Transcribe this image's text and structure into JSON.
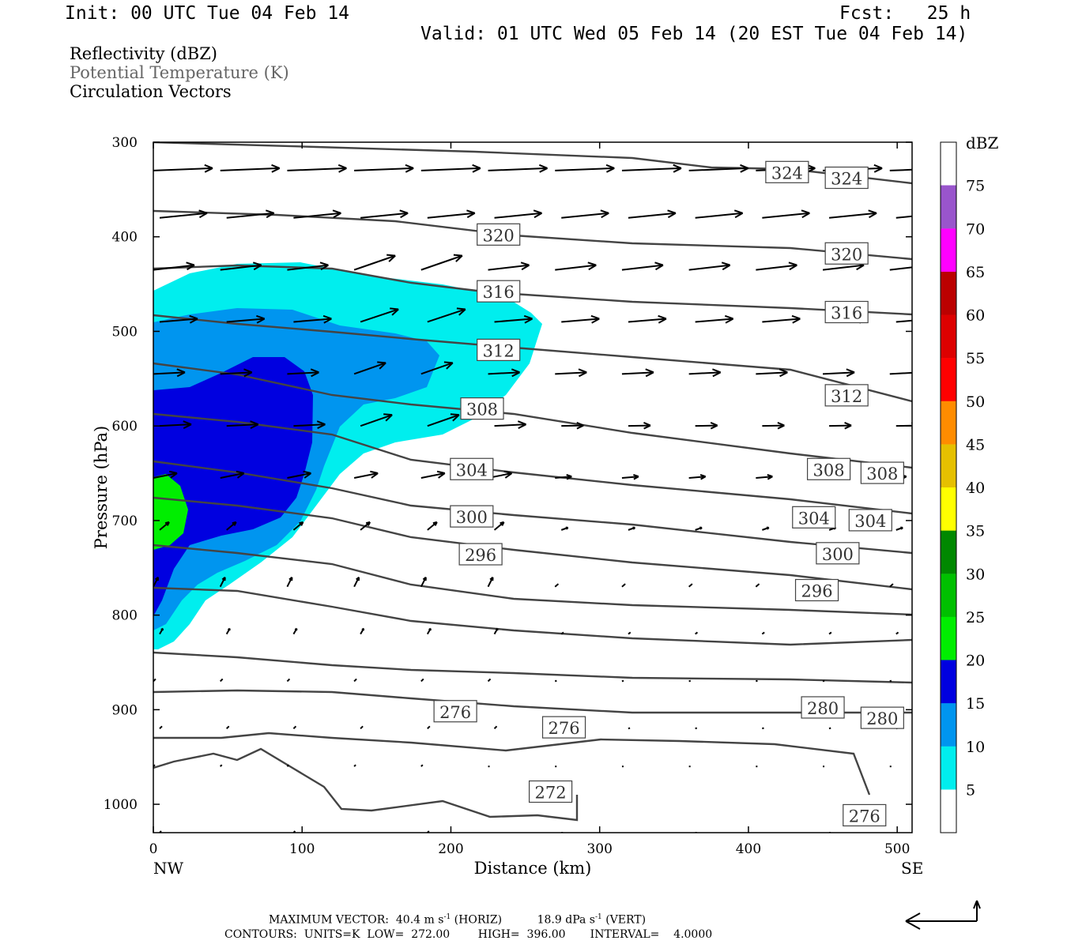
{
  "header": {
    "init": "Init: 00 UTC Tue 04 Feb 14",
    "fcst": "Fcst:   25 h",
    "valid": "Valid: 01 UTC Wed 05 Feb 14 (20 EST Tue 04 Feb 14)"
  },
  "legend_lines": [
    "Reflectivity (dBZ)",
    "Potential Temperature (K)",
    "Circulation Vectors"
  ],
  "footer": {
    "max_vector_label": "MAXIMUM VECTOR:",
    "max_horiz": "40.4 m s",
    "horiz_tag": "(HORIZ)",
    "max_vert": "18.9 dPa s",
    "vert_tag": "(VERT)",
    "exp": "-1",
    "contours": "CONTOURS:  UNITS=K  LOW=  272.00        HIGH=  396.00       INTERVAL=    4.0000"
  },
  "colors": {
    "contour": "#444444",
    "dbz_5": "#00eeee",
    "dbz_10": "#0095ef",
    "dbz_15": "#0000e0",
    "dbz_20": "#00ee00"
  },
  "chart_data": {
    "type": "cross-section",
    "xlabel": "Distance (km)",
    "ylabel": "Pressure (hPa)",
    "xlim": [
      0,
      510
    ],
    "ylim": [
      300,
      1030
    ],
    "y_scale": "linear, inverted",
    "x_ticks": [
      0,
      100,
      200,
      300,
      400,
      500
    ],
    "y_ticks": [
      300,
      400,
      500,
      600,
      700,
      800,
      900,
      1000
    ],
    "x_end_labels": {
      "left": "NW",
      "right": "SE"
    },
    "colorbar": {
      "title": "dBZ",
      "levels": [
        5,
        10,
        15,
        20,
        25,
        30,
        35,
        40,
        45,
        50,
        55,
        60,
        65,
        70,
        75
      ],
      "colors": [
        "#00eeee",
        "#0095ef",
        "#0000e0",
        "#00ee00",
        "#00c000",
        "#008800",
        "#ffff00",
        "#e5c000",
        "#ff8c00",
        "#ff0000",
        "#dd0000",
        "#bb0000",
        "#ff00ff",
        "#9955cc",
        "#ffffff"
      ]
    },
    "contour_labels": [
      {
        "value": "324",
        "x": 426,
        "p": 332
      },
      {
        "value": "324",
        "x": 466,
        "p": 338
      },
      {
        "value": "320",
        "x": 232,
        "p": 398
      },
      {
        "value": "320",
        "x": 466,
        "p": 418
      },
      {
        "value": "316",
        "x": 232,
        "p": 458
      },
      {
        "value": "316",
        "x": 466,
        "p": 480
      },
      {
        "value": "312",
        "x": 232,
        "p": 520
      },
      {
        "value": "312",
        "x": 466,
        "p": 568
      },
      {
        "value": "308",
        "x": 221,
        "p": 582
      },
      {
        "value": "308",
        "x": 454,
        "p": 646
      },
      {
        "value": "308",
        "x": 490,
        "p": 650
      },
      {
        "value": "304",
        "x": 214,
        "p": 646
      },
      {
        "value": "304",
        "x": 444,
        "p": 697
      },
      {
        "value": "304",
        "x": 482,
        "p": 700
      },
      {
        "value": "300",
        "x": 214,
        "p": 696
      },
      {
        "value": "300",
        "x": 460,
        "p": 735
      },
      {
        "value": "296",
        "x": 220,
        "p": 736
      },
      {
        "value": "296",
        "x": 446,
        "p": 774
      },
      {
        "value": "280",
        "x": 450,
        "p": 898
      },
      {
        "value": "280",
        "x": 490,
        "p": 909
      },
      {
        "value": "276",
        "x": 203,
        "p": 902
      },
      {
        "value": "276",
        "x": 276,
        "p": 919
      },
      {
        "value": "276",
        "x": 478,
        "p": 1012
      },
      {
        "value": "272",
        "x": 267,
        "p": 987
      }
    ]
  }
}
